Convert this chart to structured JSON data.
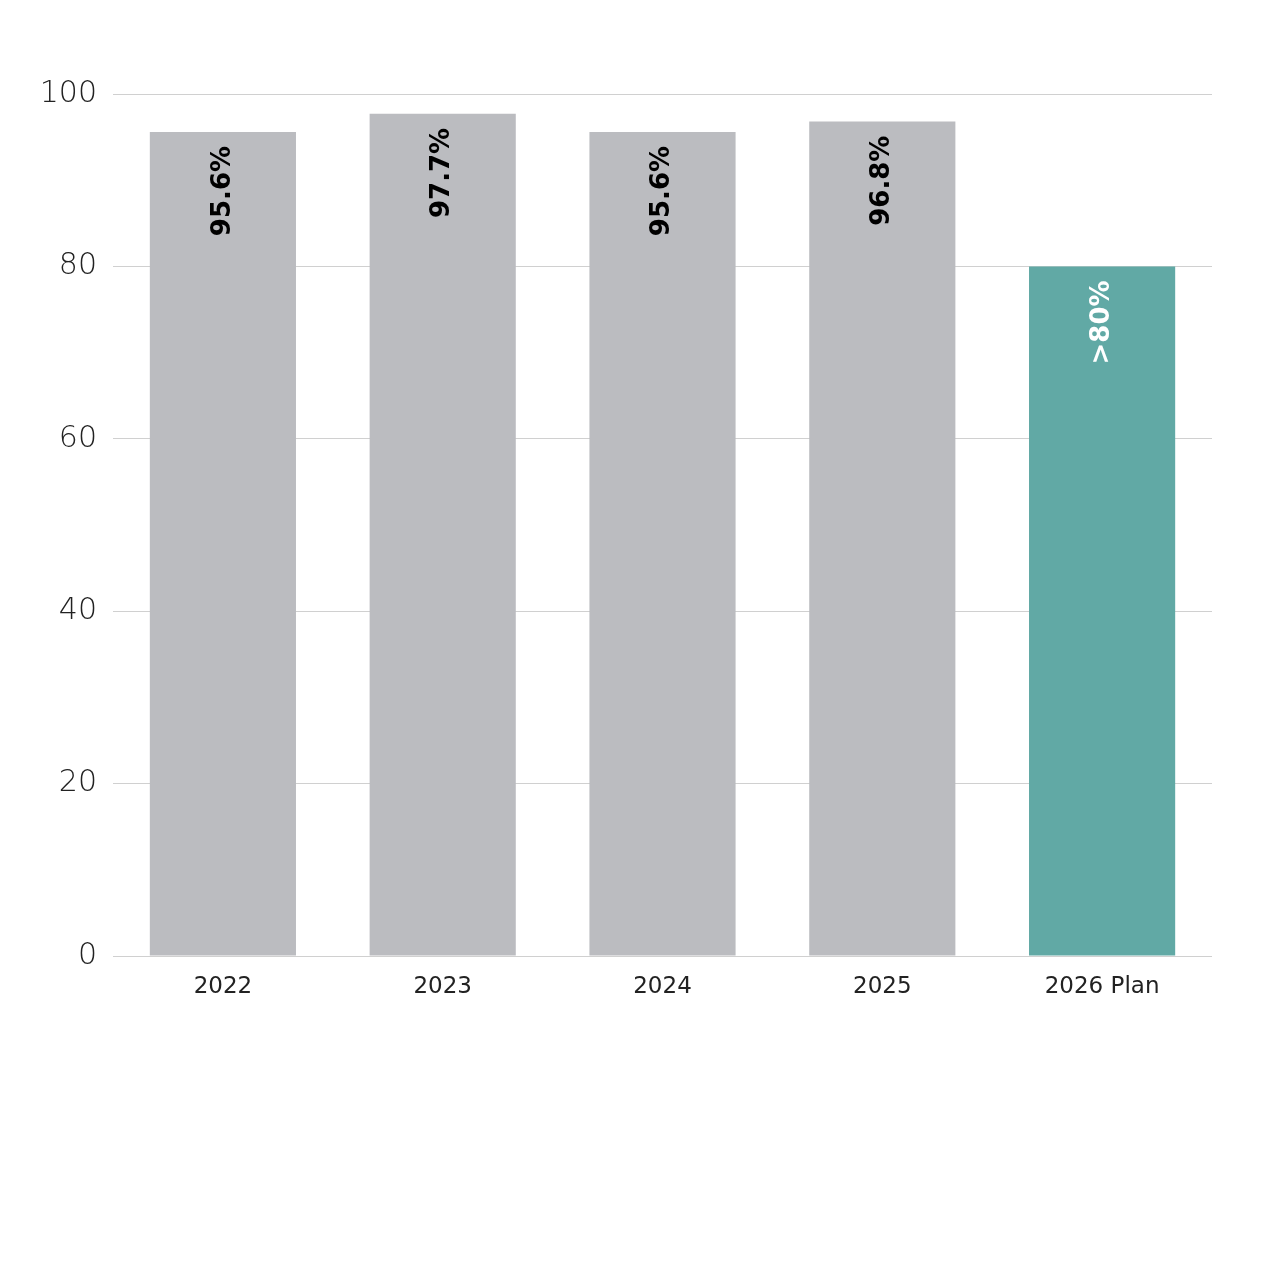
{
  "chart_data": {
    "type": "bar",
    "categories": [
      "2022",
      "2023",
      "2024",
      "2025",
      "2026 Plan"
    ],
    "values": [
      95.6,
      97.7,
      95.6,
      96.8,
      80
    ],
    "colors": [
      "#bbbcc0",
      "#bbbcc0",
      "#bbbcc0",
      "#bbbcc0",
      "#61a9a5"
    ],
    "value_labels": [
      "95.6%",
      "97.7%",
      "95.6%",
      "96.8%",
      ">80%"
    ],
    "ylim": [
      0,
      100
    ],
    "yticks": [
      0,
      20,
      40,
      60,
      80,
      100
    ],
    "grid": "y"
  }
}
